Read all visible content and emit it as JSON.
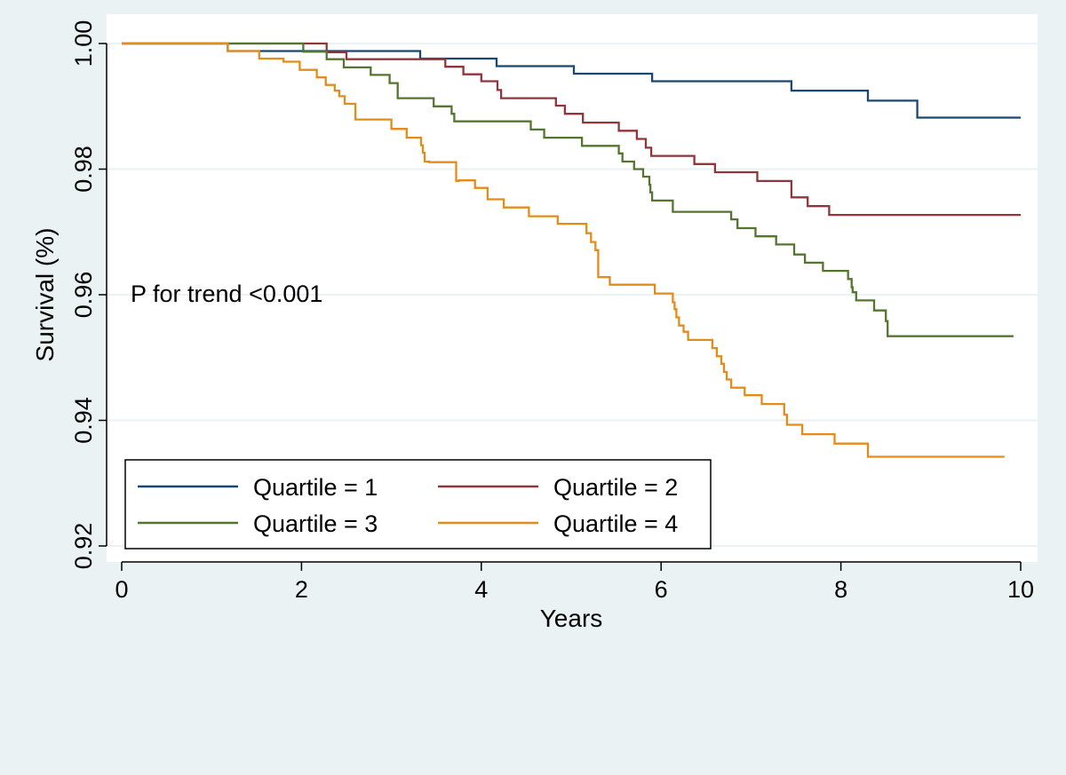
{
  "chart_data": {
    "type": "line",
    "title": "",
    "xlabel": "Years",
    "ylabel": "Survival (%)",
    "xlim": [
      0,
      10
    ],
    "ylim": [
      0.92,
      1.0
    ],
    "x_ticks": [
      0,
      2,
      4,
      6,
      8,
      10
    ],
    "y_ticks": [
      0.92,
      0.94,
      0.96,
      0.98,
      1.0
    ],
    "x_tick_labels": [
      "0",
      "2",
      "4",
      "6",
      "8",
      "10"
    ],
    "y_tick_labels": [
      "0.92",
      "0.94",
      "0.96",
      "0.98",
      "1.00"
    ],
    "grid": "horizontal",
    "step": true,
    "annotation": "P for trend <0.001",
    "legend_position": "bottom-left",
    "colors": {
      "background": "#eaf2f3",
      "plot_background": "#ffffff",
      "gridline": "#eaf2f3"
    },
    "series": [
      {
        "name": "Quartile = 1",
        "color": "#1a476f",
        "x": [
          0,
          1.18,
          3.32,
          4.17,
          5.03,
          5.9,
          7.45,
          8.3,
          8.85,
          10.0
        ],
        "y": [
          1.0,
          0.9988,
          0.9976,
          0.9964,
          0.9952,
          0.994,
          0.9925,
          0.9909,
          0.9882,
          0.9882
        ]
      },
      {
        "name": "Quartile = 2",
        "color": "#90353b",
        "x": [
          0,
          2.28,
          2.5,
          3.6,
          3.8,
          4.0,
          4.18,
          4.22,
          4.83,
          4.93,
          5.13,
          5.53,
          5.73,
          5.83,
          5.89,
          6.37,
          6.6,
          7.07,
          7.45,
          7.63,
          7.87,
          10.0
        ],
        "y": [
          1.0,
          0.9986,
          0.9975,
          0.9963,
          0.9951,
          0.994,
          0.9926,
          0.9913,
          0.9901,
          0.9888,
          0.9874,
          0.9861,
          0.9848,
          0.9834,
          0.9821,
          0.9808,
          0.9795,
          0.9781,
          0.9755,
          0.9741,
          0.9727,
          0.9727
        ]
      },
      {
        "name": "Quartile = 3",
        "color": "#55752f",
        "x": [
          0,
          2.02,
          2.28,
          2.47,
          2.77,
          2.98,
          3.07,
          3.47,
          3.67,
          3.7,
          4.55,
          4.7,
          5.12,
          5.53,
          5.57,
          5.7,
          5.8,
          5.87,
          5.88,
          5.9,
          6.13,
          6.78,
          6.85,
          7.05,
          7.28,
          7.48,
          7.6,
          7.8,
          8.08,
          8.12,
          8.13,
          8.17,
          8.37,
          8.5,
          8.52,
          9.92
        ],
        "y": [
          1.0,
          0.9987,
          0.9975,
          0.9962,
          0.995,
          0.9937,
          0.9913,
          0.99,
          0.9888,
          0.9876,
          0.9863,
          0.985,
          0.9837,
          0.9825,
          0.9812,
          0.98,
          0.9788,
          0.9775,
          0.9763,
          0.975,
          0.9732,
          0.972,
          0.9706,
          0.9693,
          0.968,
          0.9664,
          0.9651,
          0.9638,
          0.9625,
          0.9612,
          0.9604,
          0.9591,
          0.9575,
          0.9558,
          0.9534,
          0.9534
        ]
      },
      {
        "name": "Quartile = 4",
        "color": "#e48c1a",
        "x": [
          0,
          1.18,
          1.53,
          1.8,
          1.98,
          2.17,
          2.27,
          2.37,
          2.42,
          2.48,
          2.6,
          3.0,
          3.17,
          3.33,
          3.35,
          3.37,
          3.42,
          3.72,
          3.75,
          3.93,
          4.07,
          4.25,
          4.53,
          4.85,
          5.17,
          5.22,
          5.27,
          5.3,
          5.43,
          5.93,
          6.13,
          6.15,
          6.17,
          6.2,
          6.25,
          6.3,
          6.57,
          6.62,
          6.67,
          6.7,
          6.73,
          6.78,
          6.93,
          7.12,
          7.37,
          7.4,
          7.57,
          7.93,
          8.3,
          9.82
        ],
        "y": [
          1.0,
          0.9988,
          0.9976,
          0.9971,
          0.9958,
          0.9946,
          0.9934,
          0.9925,
          0.9916,
          0.9904,
          0.9879,
          0.9864,
          0.985,
          0.9838,
          0.9826,
          0.9812,
          0.9811,
          0.9781,
          0.9782,
          0.977,
          0.9752,
          0.9739,
          0.9725,
          0.9713,
          0.9698,
          0.9684,
          0.9671,
          0.9628,
          0.9616,
          0.9602,
          0.9588,
          0.9577,
          0.9564,
          0.9551,
          0.9541,
          0.9528,
          0.9515,
          0.9502,
          0.949,
          0.9477,
          0.9465,
          0.9452,
          0.944,
          0.9426,
          0.9409,
          0.9393,
          0.9378,
          0.9363,
          0.9342,
          0.9342
        ]
      }
    ]
  }
}
